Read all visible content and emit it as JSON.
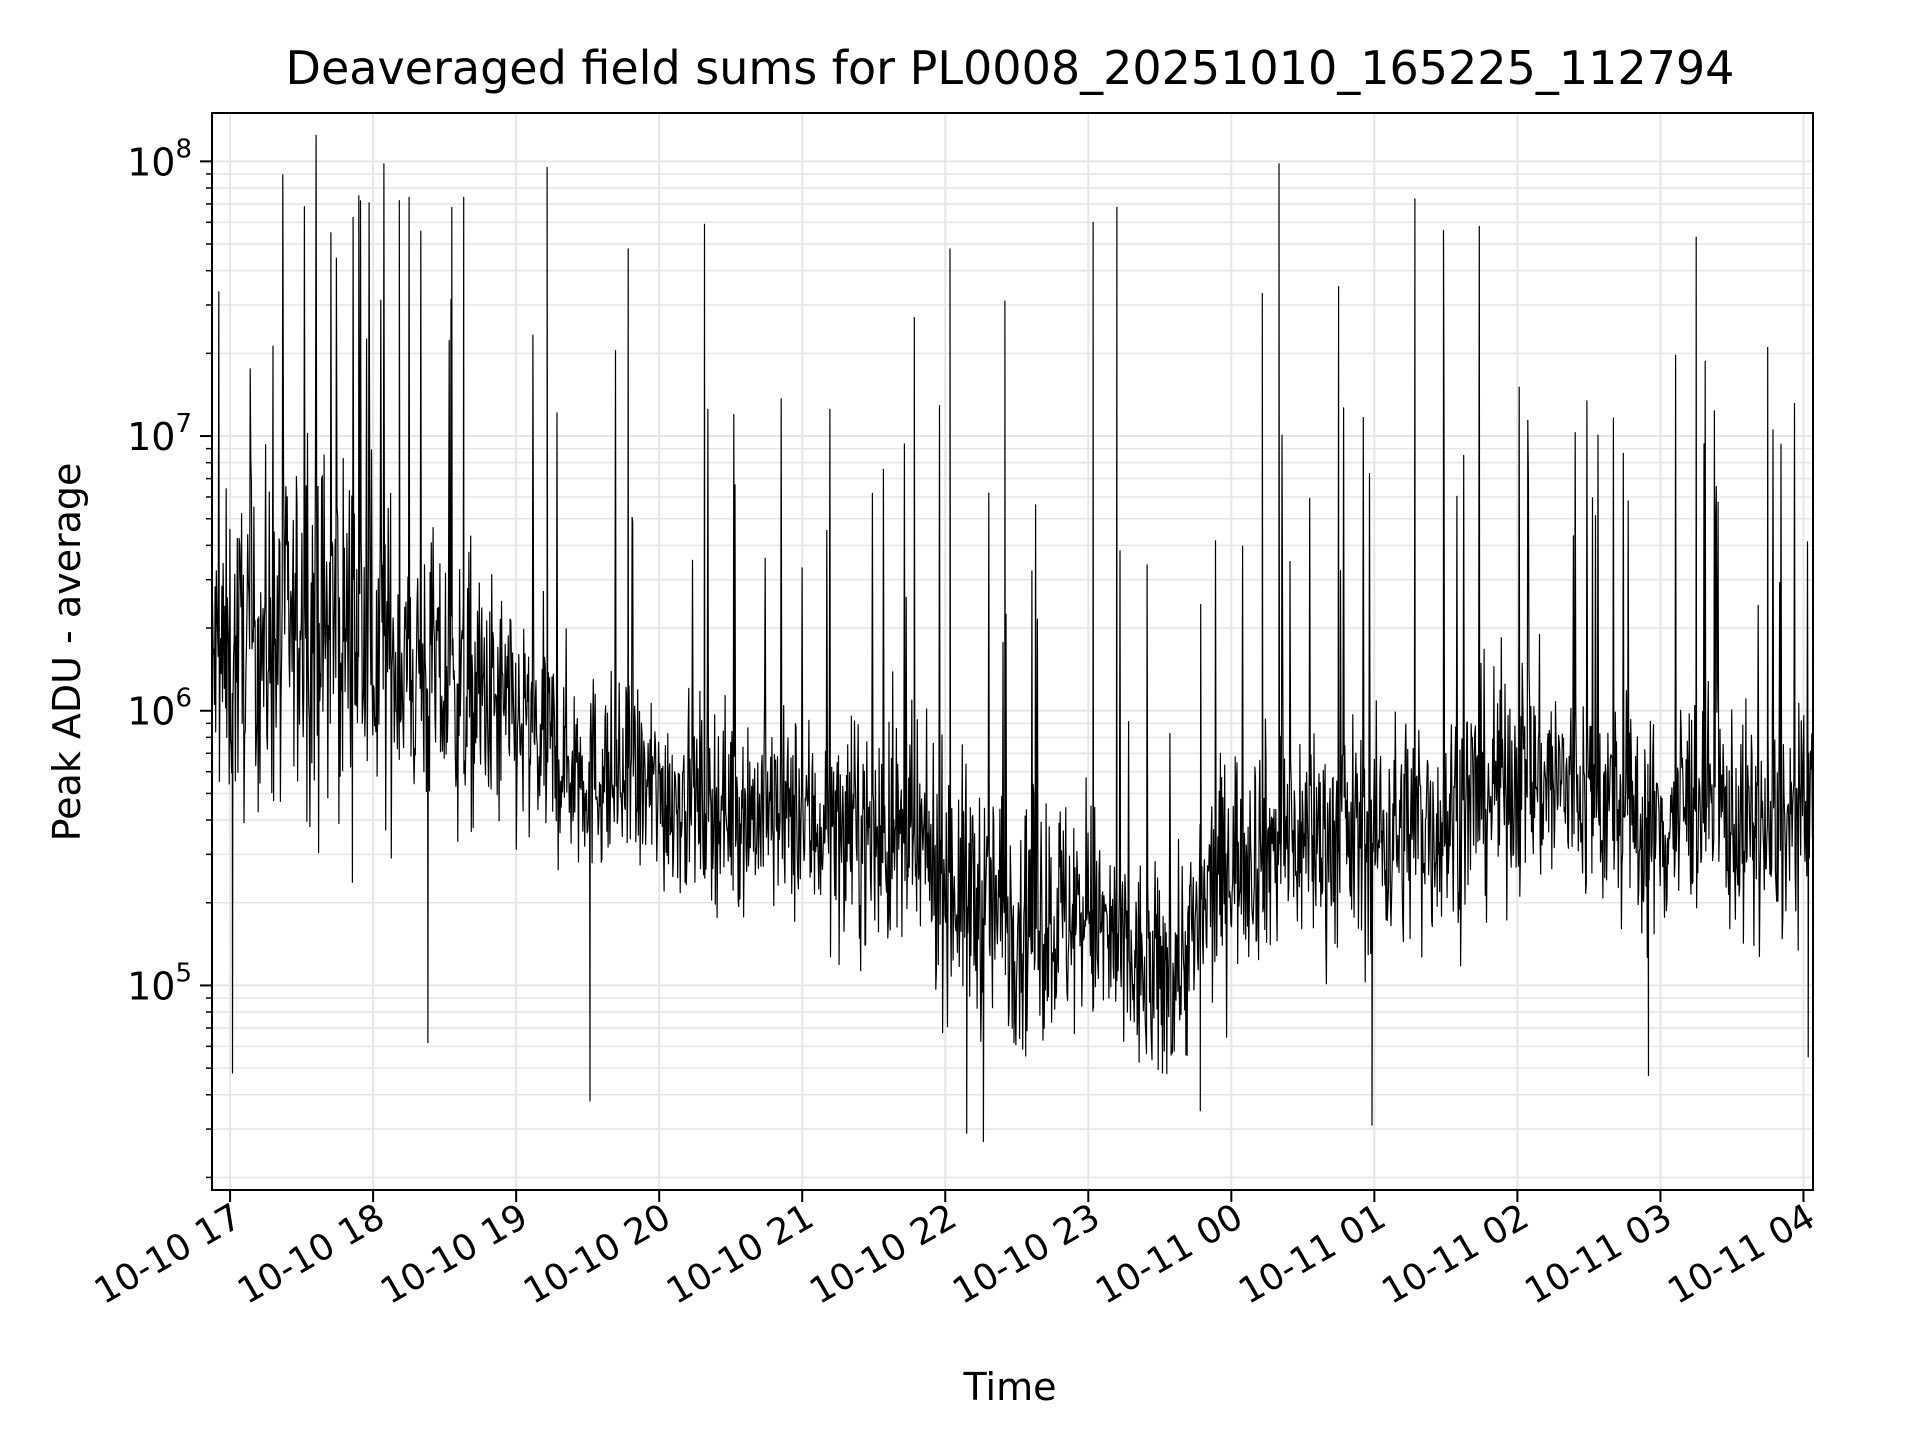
{
  "chart_data": {
    "type": "line",
    "title": "Deaveraged field sums for PL0008_20251010_165225_112794",
    "xlabel": "Time",
    "ylabel": "Peak ADU - average",
    "yscale": "log",
    "ylim": [
      18000,
      150000000
    ],
    "xlim": [
      "2025-10-10 16:52:25",
      "2025-10-11 04:04:00"
    ],
    "grid": true,
    "line_color": "#000000",
    "grid_color": "#e6e6e6",
    "x_ticks": [
      {
        "value": "2025-10-10 17:00",
        "label": "10-10 17"
      },
      {
        "value": "2025-10-10 18:00",
        "label": "10-10 18"
      },
      {
        "value": "2025-10-10 19:00",
        "label": "10-10 19"
      },
      {
        "value": "2025-10-10 20:00",
        "label": "10-10 20"
      },
      {
        "value": "2025-10-10 21:00",
        "label": "10-10 21"
      },
      {
        "value": "2025-10-10 22:00",
        "label": "10-10 22"
      },
      {
        "value": "2025-10-10 23:00",
        "label": "10-10 23"
      },
      {
        "value": "2025-10-11 00:00",
        "label": "10-11 00"
      },
      {
        "value": "2025-10-11 01:00",
        "label": "10-11 01"
      },
      {
        "value": "2025-10-11 02:00",
        "label": "10-11 02"
      },
      {
        "value": "2025-10-11 03:00",
        "label": "10-11 03"
      },
      {
        "value": "2025-10-11 04:00",
        "label": "10-11 04"
      }
    ],
    "y_ticks": [
      {
        "value": 100000,
        "base": "10",
        "exp": "5"
      },
      {
        "value": 1000000,
        "base": "10",
        "exp": "6"
      },
      {
        "value": 10000000,
        "base": "10",
        "exp": "7"
      },
      {
        "value": 100000000,
        "base": "10",
        "exp": "8"
      }
    ],
    "series": [
      {
        "x": [
          "2025-10-10 16:52",
          "2025-10-10 17:00",
          "2025-10-10 17:10",
          "2025-10-10 17:20",
          "2025-10-10 17:30",
          "2025-10-10 17:40",
          "2025-10-10 17:50",
          "2025-10-10 18:00",
          "2025-10-10 18:15",
          "2025-10-10 18:30",
          "2025-10-10 18:45",
          "2025-10-10 19:00",
          "2025-10-10 19:15",
          "2025-10-10 19:30",
          "2025-10-10 19:45",
          "2025-10-10 20:00",
          "2025-10-10 20:30",
          "2025-10-10 21:00",
          "2025-10-10 21:30",
          "2025-10-10 21:50",
          "2025-10-10 22:00",
          "2025-10-10 22:15",
          "2025-10-10 22:30",
          "2025-10-10 22:45",
          "2025-10-10 23:00",
          "2025-10-10 23:15",
          "2025-10-10 23:30",
          "2025-10-10 23:45",
          "2025-10-11 00:00",
          "2025-10-11 00:30",
          "2025-10-11 01:00",
          "2025-10-11 01:30",
          "2025-10-11 02:00",
          "2025-10-11 02:30",
          "2025-10-11 03:00",
          "2025-10-11 03:15",
          "2025-10-11 03:30",
          "2025-10-11 03:45",
          "2025-10-11 04:03"
        ],
        "median": [
          1500000,
          1500000,
          1800000,
          1800000,
          2000000,
          2000000,
          2000000,
          1700000,
          1500000,
          1200000,
          1100000,
          900000,
          700000,
          600000,
          550000,
          500000,
          450000,
          400000,
          350000,
          300000,
          250000,
          200000,
          180000,
          180000,
          180000,
          120000,
          100000,
          150000,
          300000,
          350000,
          350000,
          400000,
          600000,
          500000,
          350000,
          500000,
          400000,
          350000,
          400000
        ],
        "spread": [
          2.2,
          2.2,
          2.3,
          2.4,
          2.5,
          2.5,
          2.5,
          2.3,
          2.2,
          2.0,
          1.9,
          1.8,
          1.6,
          1.4,
          1.4,
          1.4,
          1.4,
          1.5,
          1.6,
          1.6,
          1.8,
          1.8,
          1.8,
          1.8,
          1.7,
          1.6,
          1.6,
          1.6,
          1.6,
          1.6,
          1.7,
          1.7,
          1.7,
          1.6,
          1.6,
          1.6,
          1.6,
          1.6,
          1.6
        ],
        "spikes": [
          {
            "x": "2025-10-10 17:54",
            "y": 75000000
          },
          {
            "x": "2025-10-10 18:11",
            "y": 72000000
          },
          {
            "x": "2025-10-10 18:33",
            "y": 68000000
          },
          {
            "x": "2025-10-10 18:38",
            "y": 74000000
          },
          {
            "x": "2025-10-10 19:13",
            "y": 95000000
          },
          {
            "x": "2025-10-10 19:47",
            "y": 48000000
          },
          {
            "x": "2025-10-10 20:19",
            "y": 59000000
          },
          {
            "x": "2025-10-10 22:02",
            "y": 48000000
          },
          {
            "x": "2025-10-10 23:02",
            "y": 60000000
          },
          {
            "x": "2025-10-10 23:12",
            "y": 68000000
          },
          {
            "x": "2025-10-11 00:20",
            "y": 98000000
          },
          {
            "x": "2025-10-11 01:17",
            "y": 73000000
          },
          {
            "x": "2025-10-11 01:29",
            "y": 56000000
          },
          {
            "x": "2025-10-11 01:44",
            "y": 58000000
          },
          {
            "x": "2025-10-11 03:15",
            "y": 53000000
          },
          {
            "x": "2025-10-11 03:45",
            "y": 21000000
          },
          {
            "x": "2025-10-11 00:13",
            "y": 33000000
          },
          {
            "x": "2025-10-11 00:45",
            "y": 35000000
          },
          {
            "x": "2025-10-10 21:47",
            "y": 27000000
          },
          {
            "x": "2025-10-10 22:25",
            "y": 31000000
          }
        ],
        "dips": [
          {
            "x": "2025-10-10 17:01",
            "y": 48000
          },
          {
            "x": "2025-10-10 18:23",
            "y": 62000
          },
          {
            "x": "2025-10-10 19:31",
            "y": 38000
          },
          {
            "x": "2025-10-10 22:16",
            "y": 27000
          },
          {
            "x": "2025-10-10 22:09",
            "y": 29000
          },
          {
            "x": "2025-10-11 00:59",
            "y": 31000
          },
          {
            "x": "2025-10-11 02:55",
            "y": 47000
          },
          {
            "x": "2025-10-11 04:02",
            "y": 55000
          },
          {
            "x": "2025-10-10 23:47",
            "y": 35000
          }
        ]
      }
    ]
  }
}
